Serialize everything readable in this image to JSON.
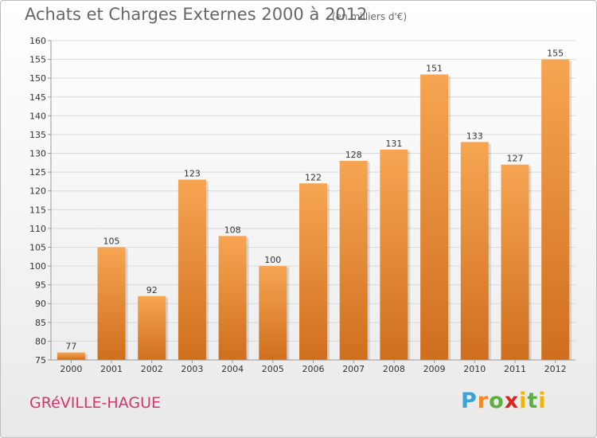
{
  "header": {
    "title": "Achats et Charges Externes 2000 à 2012",
    "subtitle": "(en milliers d'€)"
  },
  "footer": {
    "place": "GRéVILLE-HAGUE",
    "brand": [
      "P",
      "r",
      "o",
      "x",
      "i",
      "t",
      "i"
    ]
  },
  "colors": {
    "bar_light": "#f7a552",
    "bar_dark": "#cf6f1d",
    "grid": "#d9d9d9",
    "axis_text": "#333333",
    "place": "#d6336c"
  },
  "chart_data": {
    "type": "bar",
    "title": "Achats et Charges Externes 2000 à 2012",
    "xlabel": "",
    "ylabel": "",
    "categories": [
      "2000",
      "2001",
      "2002",
      "2003",
      "2004",
      "2005",
      "2006",
      "2007",
      "2008",
      "2009",
      "2010",
      "2011",
      "2012"
    ],
    "values": [
      77,
      105,
      92,
      123,
      108,
      100,
      122,
      128,
      131,
      151,
      133,
      127,
      155
    ],
    "ylim": [
      75,
      160
    ],
    "yticks": [
      75,
      80,
      85,
      90,
      95,
      100,
      105,
      110,
      115,
      120,
      125,
      130,
      135,
      140,
      145,
      150,
      155,
      160
    ],
    "grid": true,
    "data_labels": true
  }
}
